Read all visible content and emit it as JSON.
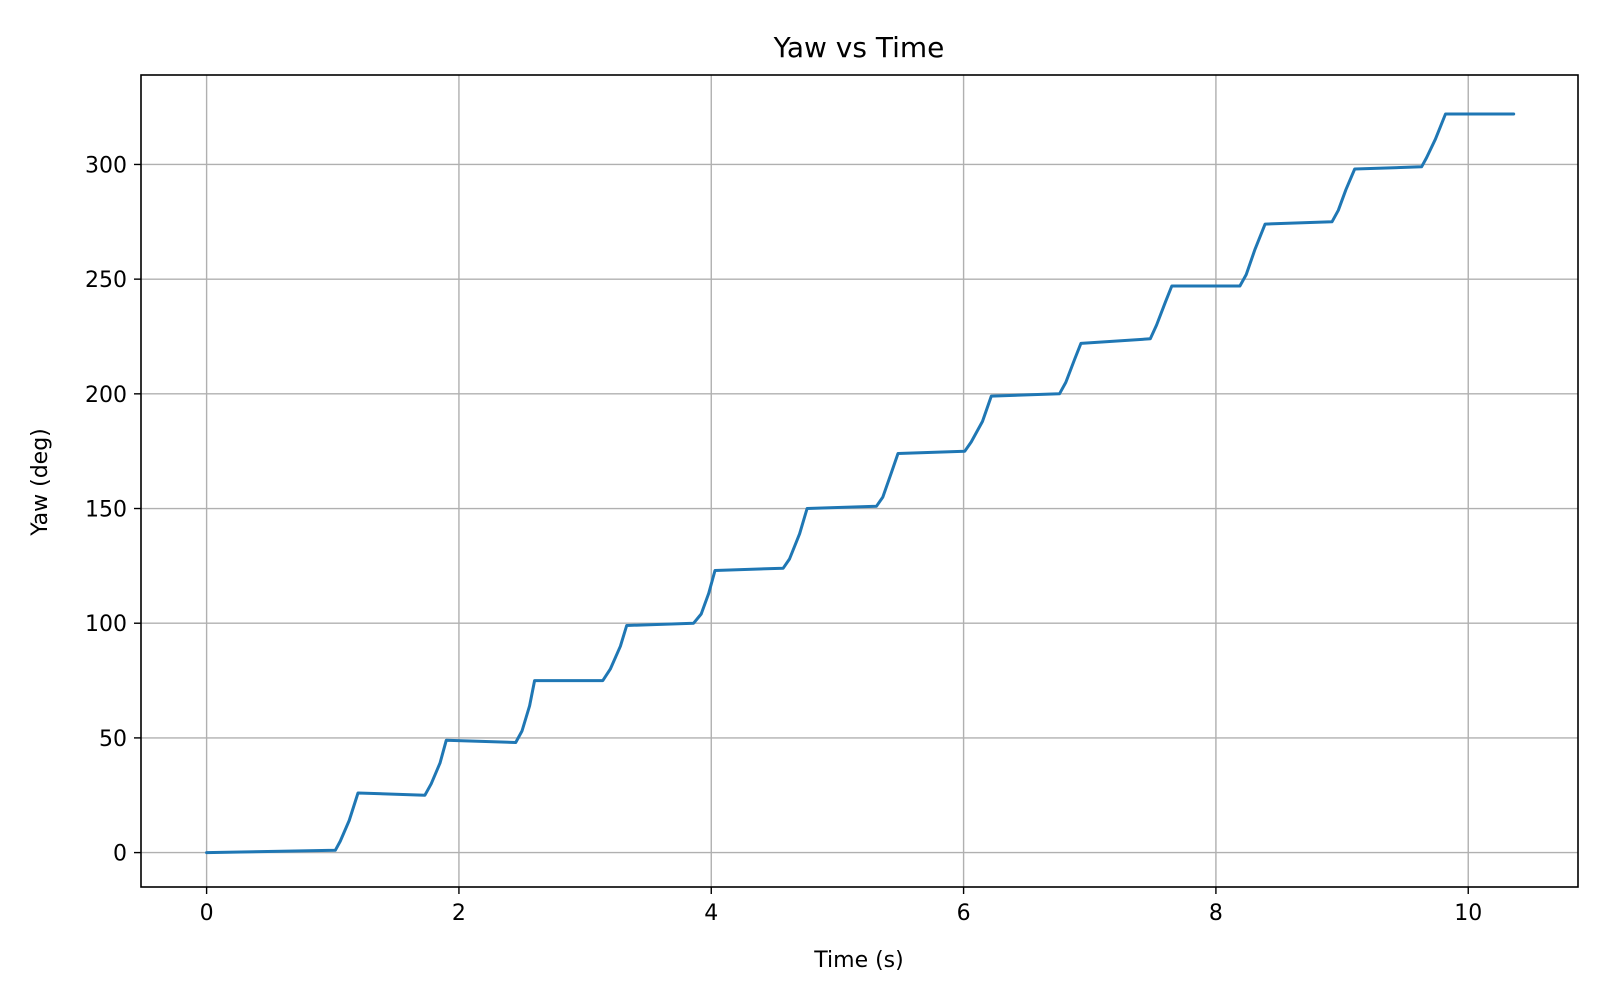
{
  "chart_data": {
    "type": "line",
    "title": "Yaw vs Time",
    "xlabel": "Time (s)",
    "ylabel": "Yaw (deg)",
    "xlim": [
      -0.52,
      10.87
    ],
    "ylim": [
      -15,
      339
    ],
    "xticks": [
      0,
      2,
      4,
      6,
      8,
      10
    ],
    "yticks": [
      0,
      50,
      100,
      150,
      200,
      250,
      300
    ],
    "grid": true,
    "legend": "none",
    "series": [
      {
        "color": "#1f77b4",
        "x": [
          0.0,
          1.02,
          1.06,
          1.13,
          1.2,
          1.73,
          1.78,
          1.85,
          1.9,
          2.45,
          2.5,
          2.56,
          2.6,
          3.14,
          3.2,
          3.28,
          3.33,
          3.86,
          3.92,
          3.98,
          4.03,
          4.57,
          4.62,
          4.7,
          4.76,
          5.31,
          5.36,
          5.43,
          5.48,
          6.01,
          6.06,
          6.15,
          6.22,
          6.76,
          6.81,
          6.88,
          6.93,
          7.48,
          7.53,
          7.6,
          7.65,
          8.19,
          8.24,
          8.31,
          8.39,
          8.92,
          8.97,
          9.03,
          9.1,
          9.63,
          9.67,
          9.74,
          9.82,
          10.36
        ],
        "y": [
          0,
          1,
          5,
          14,
          26,
          25,
          30,
          39,
          49,
          48,
          53,
          64,
          75,
          75,
          80,
          90,
          99,
          100,
          104,
          113,
          123,
          124,
          128,
          139,
          150,
          151,
          155,
          166,
          174,
          175,
          179,
          188,
          199,
          200,
          205,
          215,
          222,
          224,
          230,
          240,
          247,
          247,
          252,
          263,
          274,
          275,
          280,
          289,
          298,
          299,
          303,
          311,
          322,
          322
        ]
      }
    ]
  }
}
